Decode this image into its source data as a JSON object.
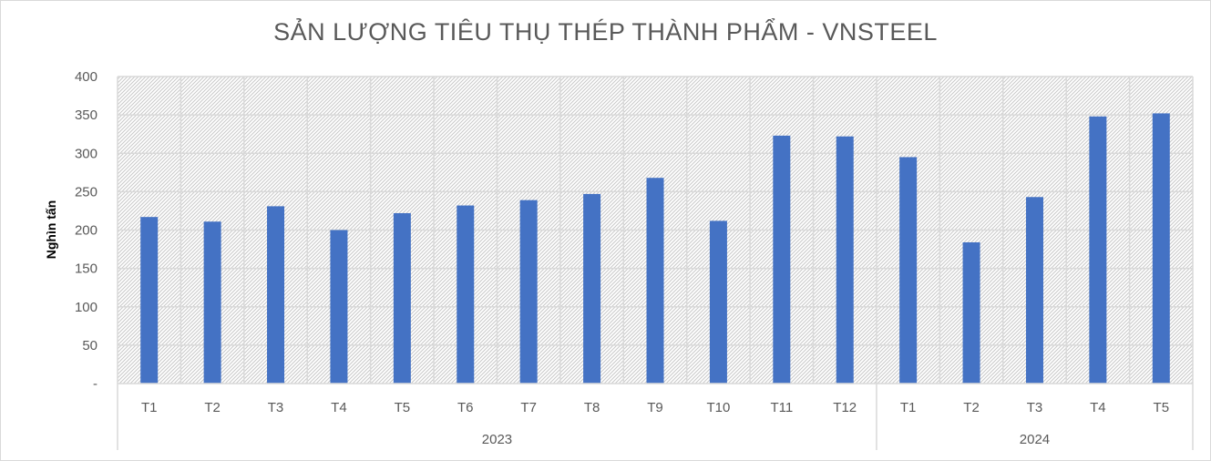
{
  "chart_data": {
    "type": "bar",
    "title": "SẢN LƯỢNG TIÊU THỤ THÉP THÀNH PHẨM - VNSTEEL",
    "ylabel": "Nghìn tấn",
    "xlabel": "",
    "ylim": [
      0,
      400
    ],
    "yticks": [
      {
        "value": 0,
        "label": "-"
      },
      {
        "value": 50,
        "label": "50"
      },
      {
        "value": 100,
        "label": "100"
      },
      {
        "value": 150,
        "label": "150"
      },
      {
        "value": 200,
        "label": "200"
      },
      {
        "value": 250,
        "label": "250"
      },
      {
        "value": 300,
        "label": "300"
      },
      {
        "value": 350,
        "label": "350"
      },
      {
        "value": 400,
        "label": "400"
      }
    ],
    "categories": [
      "T1",
      "T2",
      "T3",
      "T4",
      "T5",
      "T6",
      "T7",
      "T8",
      "T9",
      "T10",
      "T11",
      "T12",
      "T1",
      "T2",
      "T3",
      "T4",
      "T5"
    ],
    "groups": [
      {
        "label": "2023",
        "count": 12
      },
      {
        "label": "2024",
        "count": 5
      }
    ],
    "values": [
      217,
      211,
      231,
      200,
      222,
      232,
      239,
      247,
      268,
      212,
      323,
      322,
      295,
      184,
      243,
      348,
      352
    ],
    "bar_color": "#4472c4",
    "grid": true,
    "legend": "none"
  }
}
